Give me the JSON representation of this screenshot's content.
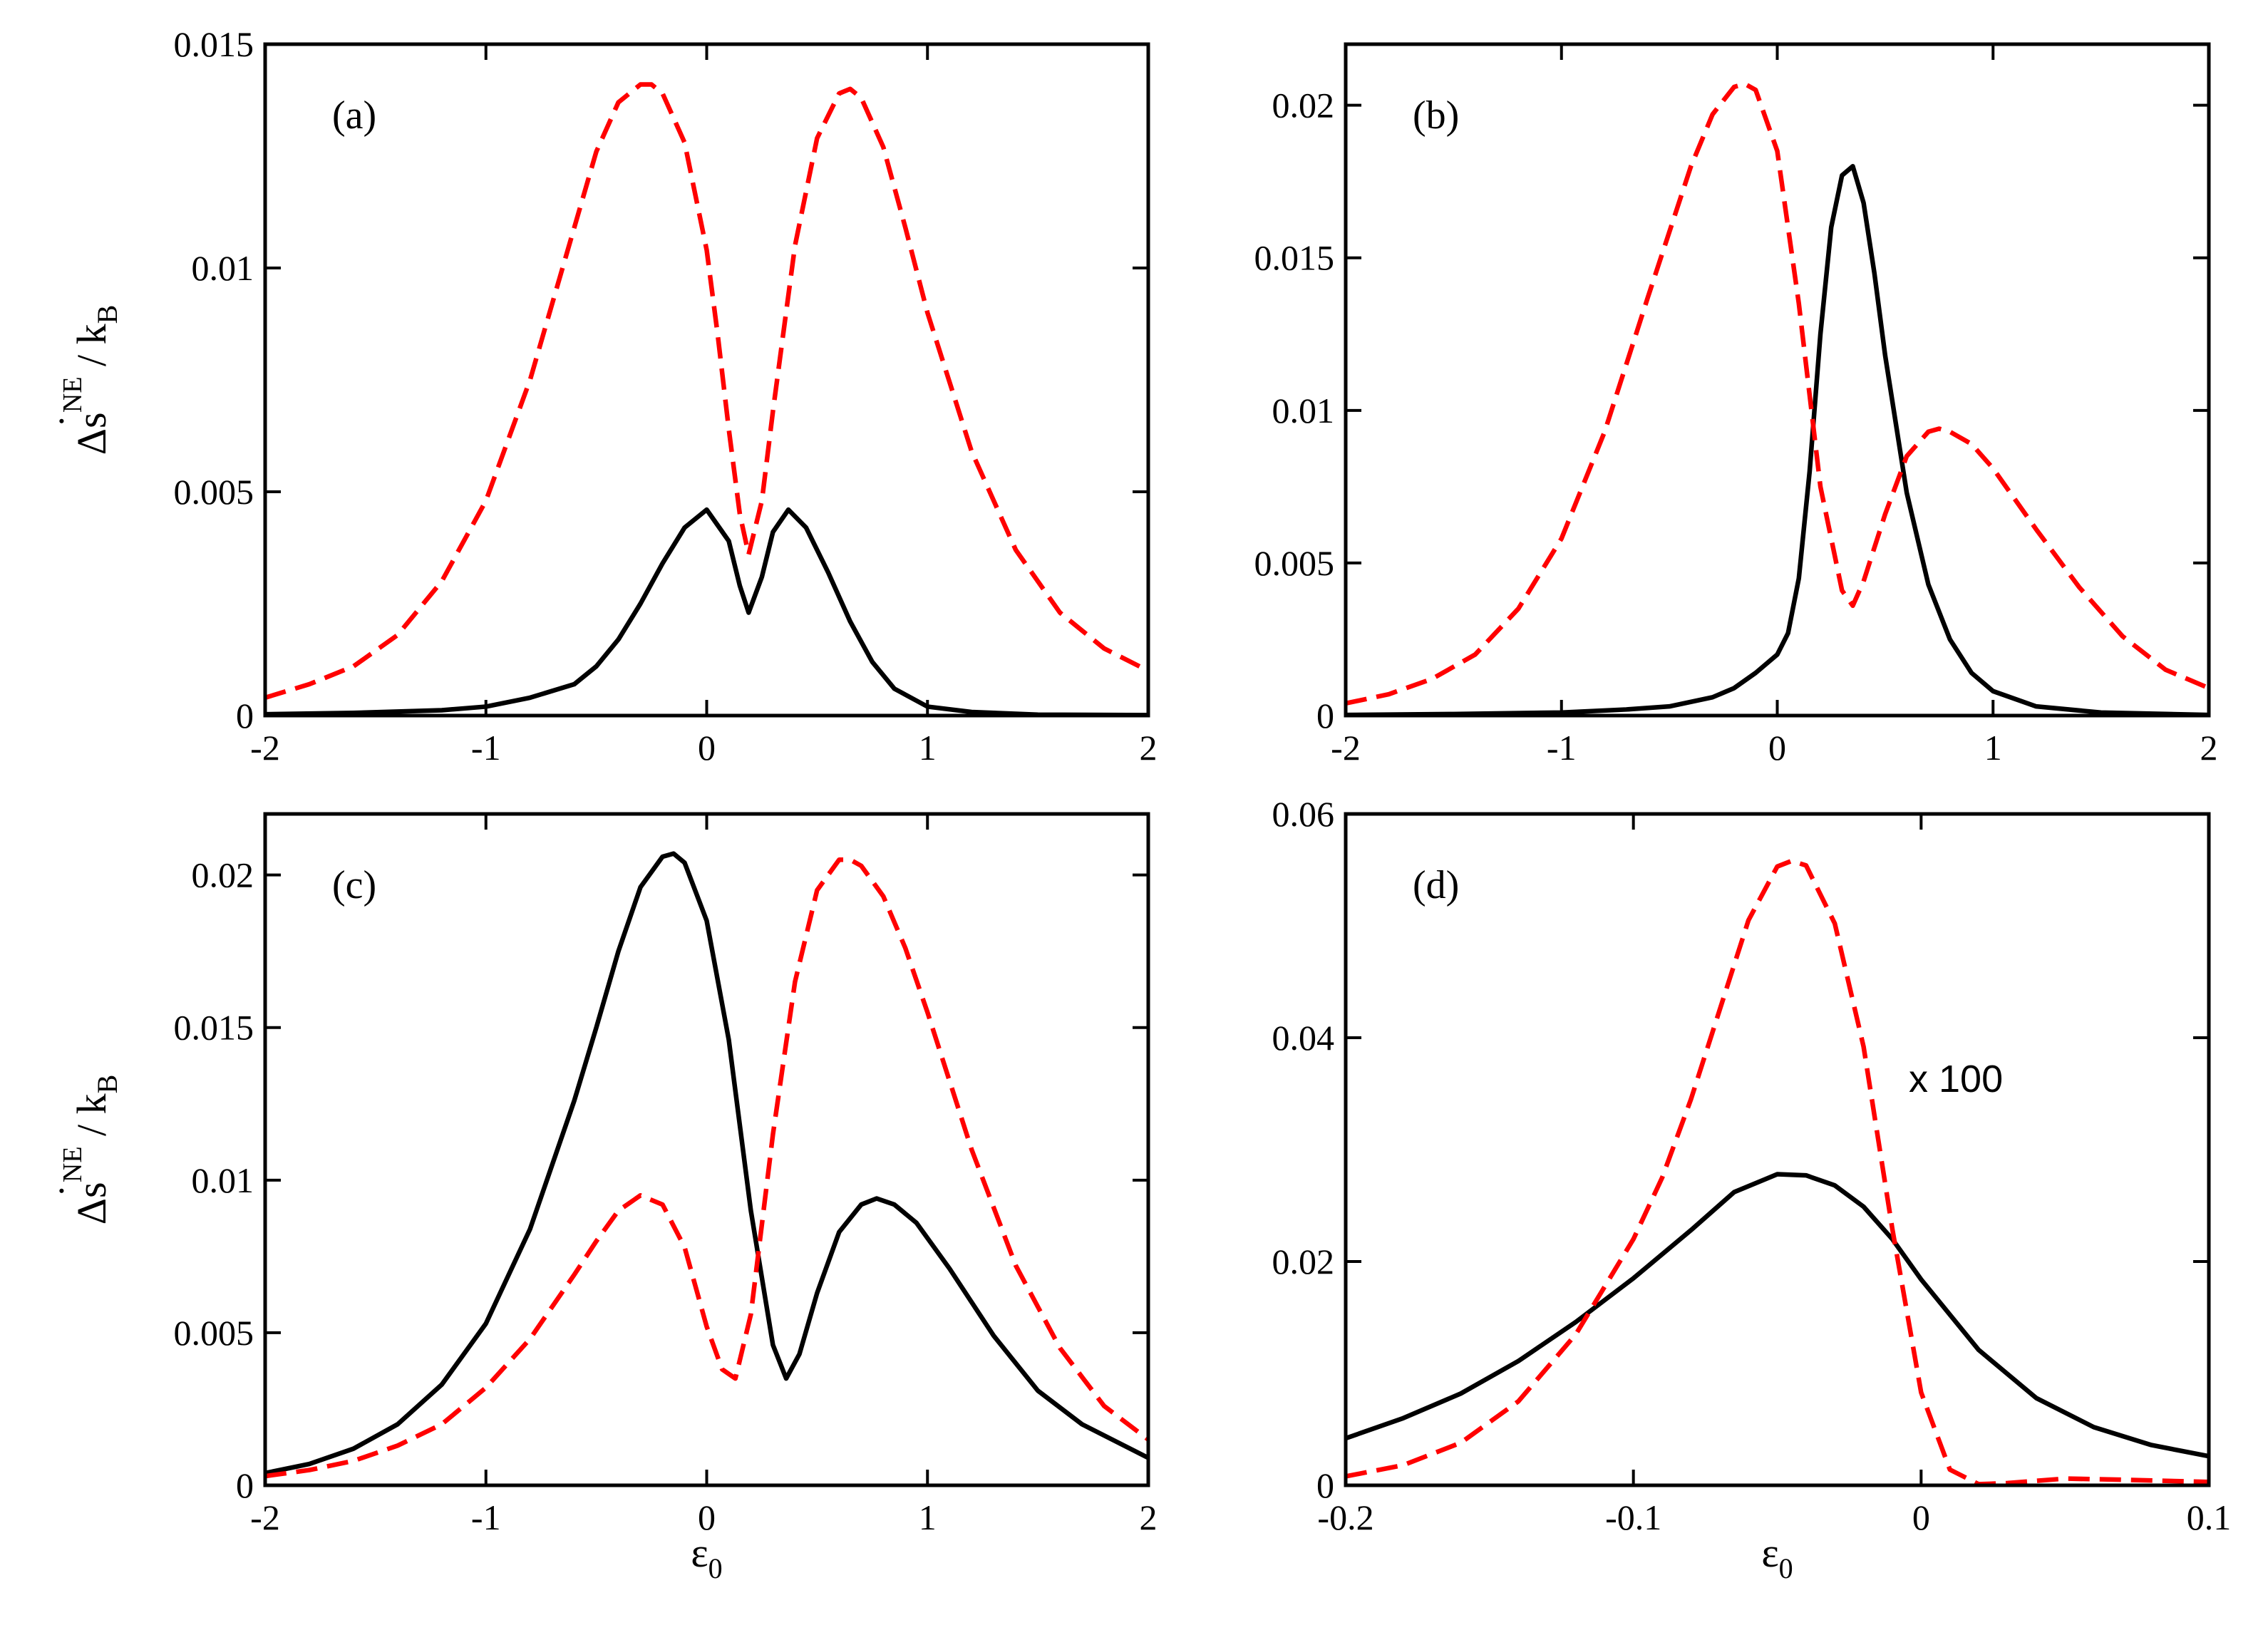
{
  "chart_data": [
    {
      "type": "line",
      "panel_label": "(a)",
      "xlim": [
        -2,
        2
      ],
      "ylim": [
        0,
        0.015
      ],
      "xticks": [
        -2,
        -1,
        0,
        1,
        2
      ],
      "xtick_labels": [
        "-2",
        "-1",
        "0",
        "1",
        "2"
      ],
      "yticks": [
        0,
        0.005,
        0.01,
        0.015
      ],
      "ytick_labels": [
        "0",
        "0.005",
        "0.01",
        "0.015"
      ],
      "series": [
        {
          "name": "solid",
          "color": "#000000",
          "style": "solid",
          "x": [
            -2,
            -1.6,
            -1.2,
            -1,
            -0.8,
            -0.6,
            -0.5,
            -0.4,
            -0.3,
            -0.2,
            -0.1,
            0,
            0.1,
            0.15,
            0.19,
            0.25,
            0.3,
            0.37,
            0.45,
            0.55,
            0.65,
            0.75,
            0.85,
            1,
            1.2,
            1.5,
            2
          ],
          "y": [
            3e-05,
            6e-05,
            0.00012,
            0.0002,
            0.0004,
            0.0007,
            0.0011,
            0.0017,
            0.0025,
            0.0034,
            0.0042,
            0.0046,
            0.0039,
            0.0029,
            0.0023,
            0.0031,
            0.0041,
            0.0046,
            0.0042,
            0.0032,
            0.0021,
            0.0012,
            0.0006,
            0.0002,
            8e-05,
            2e-05,
            1e-05
          ]
        },
        {
          "name": "dashed",
          "color": "#ff0000",
          "style": "dashed",
          "x": [
            -2,
            -1.8,
            -1.6,
            -1.4,
            -1.2,
            -1,
            -0.8,
            -0.6,
            -0.5,
            -0.4,
            -0.3,
            -0.25,
            -0.2,
            -0.1,
            0,
            0.05,
            0.1,
            0.15,
            0.19,
            0.25,
            0.3,
            0.4,
            0.5,
            0.6,
            0.65,
            0.7,
            0.8,
            0.9,
            1,
            1.2,
            1.4,
            1.6,
            1.8,
            2
          ],
          "y": [
            0.0004,
            0.0007,
            0.0011,
            0.0018,
            0.003,
            0.0048,
            0.0075,
            0.0109,
            0.0126,
            0.0137,
            0.0141,
            0.0141,
            0.0139,
            0.0128,
            0.0104,
            0.0085,
            0.0064,
            0.0045,
            0.0036,
            0.0048,
            0.0068,
            0.0105,
            0.0129,
            0.0139,
            0.014,
            0.0138,
            0.0127,
            0.0109,
            0.009,
            0.0059,
            0.0037,
            0.0023,
            0.0015,
            0.001
          ]
        }
      ]
    },
    {
      "type": "line",
      "panel_label": "(b)",
      "xlim": [
        -2,
        2
      ],
      "ylim": [
        0,
        0.022
      ],
      "xticks": [
        -2,
        -1,
        0,
        1,
        2
      ],
      "xtick_labels": [
        "-2",
        "-1",
        "0",
        "1",
        "2"
      ],
      "yticks": [
        0,
        0.005,
        0.01,
        0.015,
        0.02
      ],
      "ytick_labels": [
        "0",
        "0.005",
        "0.01",
        "0.015",
        "0.02"
      ],
      "series": [
        {
          "name": "solid",
          "color": "#000000",
          "style": "solid",
          "x": [
            -2,
            -1.5,
            -1,
            -0.7,
            -0.5,
            -0.3,
            -0.2,
            -0.1,
            0,
            0.05,
            0.1,
            0.15,
            0.2,
            0.25,
            0.3,
            0.35,
            0.4,
            0.45,
            0.5,
            0.6,
            0.7,
            0.8,
            0.9,
            1,
            1.2,
            1.5,
            2
          ],
          "y": [
            2e-05,
            5e-05,
            0.0001,
            0.0002,
            0.0003,
            0.0006,
            0.0009,
            0.0014,
            0.002,
            0.0027,
            0.0045,
            0.008,
            0.0125,
            0.016,
            0.0177,
            0.018,
            0.0168,
            0.0145,
            0.0118,
            0.0073,
            0.0043,
            0.0025,
            0.0014,
            0.0008,
            0.0003,
            0.0001,
            2e-05
          ]
        },
        {
          "name": "dashed",
          "color": "#ff0000",
          "style": "dashed",
          "x": [
            -2,
            -1.8,
            -1.6,
            -1.4,
            -1.2,
            -1,
            -0.8,
            -0.6,
            -0.4,
            -0.3,
            -0.2,
            -0.15,
            -0.1,
            0,
            0.1,
            0.2,
            0.3,
            0.35,
            0.4,
            0.5,
            0.6,
            0.7,
            0.75,
            0.8,
            0.9,
            1,
            1.2,
            1.4,
            1.6,
            1.8,
            2
          ],
          "y": [
            0.0004,
            0.0007,
            0.0012,
            0.002,
            0.0035,
            0.0058,
            0.0093,
            0.0137,
            0.018,
            0.0197,
            0.0206,
            0.0207,
            0.0205,
            0.0185,
            0.0135,
            0.0075,
            0.0041,
            0.0036,
            0.0044,
            0.0066,
            0.0085,
            0.0093,
            0.0094,
            0.0093,
            0.0089,
            0.0081,
            0.0061,
            0.0042,
            0.0026,
            0.0015,
            0.0009
          ]
        }
      ]
    },
    {
      "type": "line",
      "panel_label": "(c)",
      "xlim": [
        -2,
        2
      ],
      "ylim": [
        0,
        0.022
      ],
      "xticks": [
        -2,
        -1,
        0,
        1,
        2
      ],
      "xtick_labels": [
        "-2",
        "-1",
        "0",
        "1",
        "2"
      ],
      "yticks": [
        0,
        0.005,
        0.01,
        0.015,
        0.02
      ],
      "ytick_labels": [
        "0",
        "0.005",
        "0.01",
        "0.015",
        "0.02"
      ],
      "series": [
        {
          "name": "solid",
          "color": "#000000",
          "style": "solid",
          "x": [
            -2,
            -1.8,
            -1.6,
            -1.4,
            -1.2,
            -1,
            -0.8,
            -0.6,
            -0.5,
            -0.4,
            -0.3,
            -0.2,
            -0.15,
            -0.1,
            0,
            0.1,
            0.2,
            0.3,
            0.36,
            0.42,
            0.5,
            0.6,
            0.7,
            0.77,
            0.85,
            0.95,
            1.1,
            1.3,
            1.5,
            1.7,
            2
          ],
          "y": [
            0.0004,
            0.0007,
            0.0012,
            0.002,
            0.0033,
            0.0053,
            0.0084,
            0.0126,
            0.015,
            0.0175,
            0.0196,
            0.0206,
            0.0207,
            0.0204,
            0.0185,
            0.0146,
            0.009,
            0.0046,
            0.0035,
            0.0043,
            0.0063,
            0.0083,
            0.0092,
            0.0094,
            0.0092,
            0.0086,
            0.0071,
            0.0049,
            0.0031,
            0.002,
            0.0009
          ]
        },
        {
          "name": "dashed",
          "color": "#ff0000",
          "style": "dashed",
          "x": [
            -2,
            -1.8,
            -1.6,
            -1.4,
            -1.2,
            -1,
            -0.8,
            -0.6,
            -0.5,
            -0.4,
            -0.3,
            -0.2,
            -0.1,
            0,
            0.07,
            0.13,
            0.2,
            0.3,
            0.4,
            0.5,
            0.6,
            0.65,
            0.7,
            0.8,
            0.9,
            1,
            1.2,
            1.4,
            1.6,
            1.8,
            2
          ],
          "y": [
            0.0003,
            0.0005,
            0.0008,
            0.0013,
            0.002,
            0.0032,
            0.0048,
            0.0069,
            0.008,
            0.009,
            0.0095,
            0.0092,
            0.0078,
            0.0052,
            0.0038,
            0.0035,
            0.0056,
            0.0115,
            0.0165,
            0.0195,
            0.0205,
            0.0205,
            0.0203,
            0.0193,
            0.0176,
            0.0155,
            0.011,
            0.0072,
            0.0045,
            0.0026,
            0.0015
          ]
        }
      ]
    },
    {
      "type": "line",
      "panel_label": "(d)",
      "annotation": "x 100",
      "xlim": [
        -0.2,
        0.1
      ],
      "ylim": [
        0,
        0.06
      ],
      "xticks": [
        -0.2,
        -0.1,
        0,
        0.1
      ],
      "xtick_labels": [
        "-0.2",
        "-0.1",
        "0",
        "0.1"
      ],
      "yticks": [
        0,
        0.02,
        0.04,
        0.06
      ],
      "ytick_labels": [
        "0",
        "0.02",
        "0.04",
        "0.06"
      ],
      "series": [
        {
          "name": "solid",
          "color": "#000000",
          "style": "solid",
          "x": [
            -0.2,
            -0.18,
            -0.16,
            -0.14,
            -0.12,
            -0.1,
            -0.08,
            -0.065,
            -0.05,
            -0.04,
            -0.03,
            -0.02,
            -0.01,
            0,
            0.02,
            0.04,
            0.06,
            0.08,
            0.1
          ],
          "y": [
            0.0042,
            0.006,
            0.0082,
            0.0111,
            0.0146,
            0.0185,
            0.0228,
            0.0262,
            0.0278,
            0.0277,
            0.0268,
            0.0249,
            0.022,
            0.0184,
            0.0121,
            0.0078,
            0.0052,
            0.0036,
            0.0026
          ]
        },
        {
          "name": "dashed",
          "color": "#ff0000",
          "style": "dashed",
          "x": [
            -0.2,
            -0.18,
            -0.16,
            -0.14,
            -0.12,
            -0.1,
            -0.09,
            -0.08,
            -0.07,
            -0.06,
            -0.05,
            -0.045,
            -0.04,
            -0.03,
            -0.02,
            -0.01,
            0,
            0.01,
            0.02,
            0.03,
            0.05,
            0.07,
            0.1
          ],
          "y": [
            0.0008,
            0.0018,
            0.0038,
            0.0075,
            0.0135,
            0.022,
            0.0275,
            0.0345,
            0.0425,
            0.0505,
            0.0553,
            0.0558,
            0.0554,
            0.0502,
            0.0392,
            0.0229,
            0.0083,
            0.0014,
            0.0001,
            0.0002,
            0.0006,
            0.0005,
            0.0003
          ]
        }
      ]
    }
  ],
  "y_axis_label": {
    "delta": "Δ",
    "s": "s",
    "dot": "˙",
    "superscript": "NE",
    "slash": " / k",
    "subscript": "B"
  },
  "x_axis_label": {
    "symbol": "ε",
    "subscript": "0"
  }
}
